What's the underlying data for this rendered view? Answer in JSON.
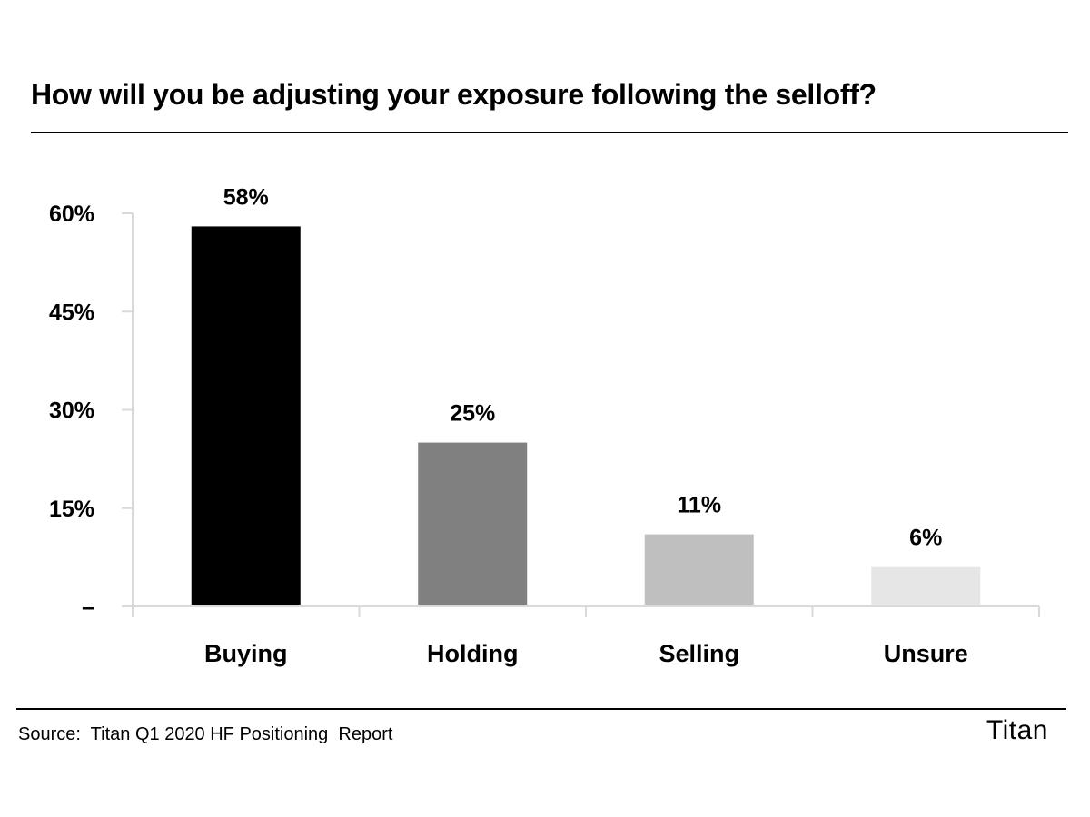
{
  "title": "How will you be adjusting your exposure following the selloff?",
  "source": "Source:  Titan Q1 2020 HF Positioning  Report",
  "brand": "Titan",
  "chart_data": {
    "type": "bar",
    "categories": [
      "Buying",
      "Holding",
      "Selling",
      "Unsure"
    ],
    "values": [
      58,
      25,
      11,
      6
    ],
    "value_labels": [
      "58%",
      "25%",
      "11%",
      "6%"
    ],
    "colors": [
      "#000000",
      "#808080",
      "#bfbfbf",
      "#e6e6e6"
    ],
    "ylim": [
      0,
      60
    ],
    "yticks": [
      0,
      15,
      30,
      45,
      60
    ],
    "ytick_labels": [
      "–",
      "15%",
      "30%",
      "45%",
      "60%"
    ],
    "grid": false,
    "axis_color": "#d9d9d9"
  }
}
